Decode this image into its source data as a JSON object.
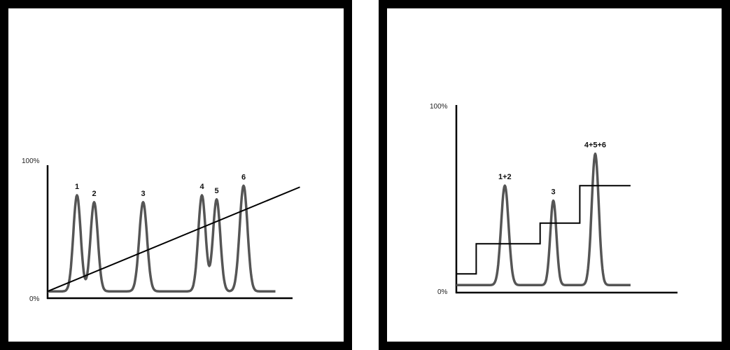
{
  "colors": {
    "trace": "#555555",
    "line": "#000000",
    "axis": "#000000",
    "frame": "#000000"
  },
  "chart_data": [
    {
      "type": "line",
      "title": "",
      "xlabel": "",
      "ylabel": "",
      "y_ticks": [
        "100%",
        "0%"
      ],
      "ylim": [
        0,
        100
      ],
      "xlim": [
        0,
        100
      ],
      "grid": false,
      "legend": "none",
      "peak_labels": [
        "1",
        "2",
        "3",
        "4",
        "5",
        "6"
      ],
      "baseline": 5,
      "peaks": [
        {
          "label": "1",
          "x": 12,
          "height": 75,
          "width": 1.5
        },
        {
          "label": "2",
          "x": 19,
          "height": 70,
          "width": 1.5
        },
        {
          "label": "3",
          "x": 39,
          "height": 70,
          "width": 1.6
        },
        {
          "label": "4",
          "x": 63,
          "height": 75,
          "width": 1.5
        },
        {
          "label": "5",
          "x": 69,
          "height": 72,
          "width": 1.5
        },
        {
          "label": "6",
          "x": 80,
          "height": 82,
          "width": 1.6
        }
      ],
      "trace_x_end": 93,
      "gradient_line": {
        "x": [
          0,
          103
        ],
        "y": [
          5,
          81
        ]
      }
    },
    {
      "type": "line",
      "title": "",
      "xlabel": "",
      "ylabel": "",
      "y_ticks": [
        "100%",
        "0%"
      ],
      "ylim": [
        0,
        100
      ],
      "xlim": [
        0,
        100
      ],
      "grid": false,
      "legend": "none",
      "peak_labels": [
        "1+2",
        "3",
        "4+5+6"
      ],
      "baseline": 4,
      "peaks": [
        {
          "label": "1+2",
          "x": 22,
          "height": 57,
          "width": 1.7
        },
        {
          "label": "3",
          "x": 44,
          "height": 49,
          "width": 1.4
        },
        {
          "label": "4+5+6",
          "x": 63,
          "height": 74,
          "width": 1.6
        }
      ],
      "trace_x_end": 79,
      "step_line": {
        "x": [
          0,
          9,
          9,
          38,
          38,
          56,
          56,
          79
        ],
        "y": [
          10,
          10,
          26,
          26,
          37,
          37,
          57,
          57
        ]
      }
    }
  ]
}
